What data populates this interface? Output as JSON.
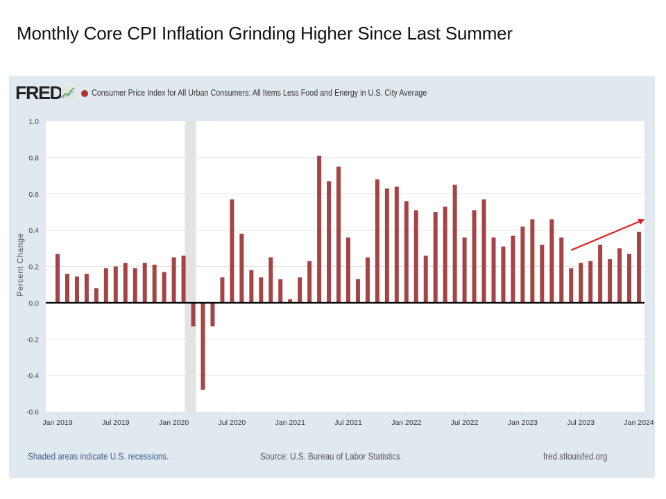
{
  "slide": {
    "title": "Monthly Core CPI Inflation Grinding Higher Since Last Summer"
  },
  "fred": {
    "logo_text": "FRED",
    "logo_icon": "line-graph-icon",
    "footer_recession_note": "Shaded areas indicate U.S. recessions.",
    "footer_source": "Source: U.S. Bureau of Labor Statistics",
    "footer_url": "fred.stlouisfed.org"
  },
  "colors": {
    "bar": "#a54444",
    "recession_shade": "#e3e3e3",
    "panel_bg": "#e1e9f0",
    "plot_bg": "#ffffff",
    "zero_line": "#000000",
    "annotation_arrow": "#e02020"
  },
  "chart_data": {
    "type": "bar",
    "title": "Consumer Price Index for All Urban Consumers: All Items Less Food and Energy in U.S. City Average",
    "xlabel": "",
    "ylabel": "Percent Change",
    "ylim": [
      -0.6,
      1.0
    ],
    "yticks": [
      1.0,
      0.8,
      0.6,
      0.4,
      0.2,
      0.0,
      -0.2,
      -0.4,
      -0.6
    ],
    "ytick_labels": [
      "1.0",
      "0.8",
      "0.6",
      "0.4",
      "0.2",
      "0.0",
      "-0.2",
      "-0.4",
      "-0.6"
    ],
    "grid": true,
    "legend": "top-left",
    "xtick_labels": [
      {
        "label": "Jan 2019",
        "index": 0
      },
      {
        "label": "Jul 2019",
        "index": 6
      },
      {
        "label": "Jan 2020",
        "index": 12
      },
      {
        "label": "Jul 2020",
        "index": 18
      },
      {
        "label": "Jan 2021",
        "index": 24
      },
      {
        "label": "Jul 2021",
        "index": 30
      },
      {
        "label": "Jan 2022",
        "index": 36
      },
      {
        "label": "Jul 2022",
        "index": 42
      },
      {
        "label": "Jan 2023",
        "index": 48
      },
      {
        "label": "Jul 2023",
        "index": 54
      },
      {
        "label": "Jan 2024",
        "index": 60
      }
    ],
    "recession_shading": {
      "start_index": 13,
      "end_index": 14,
      "label": "2020 recession (Feb-Apr 2020)"
    },
    "annotation": {
      "type": "arrow",
      "from": {
        "index": 53,
        "value": 0.29
      },
      "to": {
        "index": 60.6,
        "value": 0.46
      },
      "meaning": "upward trend since summer 2023"
    },
    "categories": [
      "2019-01",
      "2019-02",
      "2019-03",
      "2019-04",
      "2019-05",
      "2019-06",
      "2019-07",
      "2019-08",
      "2019-09",
      "2019-10",
      "2019-11",
      "2019-12",
      "2020-01",
      "2020-02",
      "2020-03",
      "2020-04",
      "2020-05",
      "2020-06",
      "2020-07",
      "2020-08",
      "2020-09",
      "2020-10",
      "2020-11",
      "2020-12",
      "2021-01",
      "2021-02",
      "2021-03",
      "2021-04",
      "2021-05",
      "2021-06",
      "2021-07",
      "2021-08",
      "2021-09",
      "2021-10",
      "2021-11",
      "2021-12",
      "2022-01",
      "2022-02",
      "2022-03",
      "2022-04",
      "2022-05",
      "2022-06",
      "2022-07",
      "2022-08",
      "2022-09",
      "2022-10",
      "2022-11",
      "2022-12",
      "2023-01",
      "2023-02",
      "2023-03",
      "2023-04",
      "2023-05",
      "2023-06",
      "2023-07",
      "2023-08",
      "2023-09",
      "2023-10",
      "2023-11",
      "2023-12",
      "2024-01"
    ],
    "series": [
      {
        "name": "Consumer Price Index for All Urban Consumers: All Items Less Food and Energy in U.S. City Average",
        "values": [
          0.27,
          0.16,
          0.145,
          0.16,
          0.08,
          0.19,
          0.2,
          0.22,
          0.19,
          0.22,
          0.21,
          0.17,
          0.25,
          0.26,
          -0.13,
          -0.48,
          -0.13,
          0.14,
          0.57,
          0.38,
          0.18,
          0.14,
          0.25,
          0.13,
          0.02,
          0.14,
          0.23,
          0.81,
          0.67,
          0.75,
          0.36,
          0.13,
          0.25,
          0.68,
          0.63,
          0.64,
          0.56,
          0.51,
          0.26,
          0.5,
          0.53,
          0.65,
          0.36,
          0.51,
          0.57,
          0.36,
          0.31,
          0.37,
          0.42,
          0.46,
          0.32,
          0.46,
          0.36,
          0.19,
          0.22,
          0.23,
          0.32,
          0.24,
          0.3,
          0.27,
          0.39
        ]
      }
    ]
  }
}
